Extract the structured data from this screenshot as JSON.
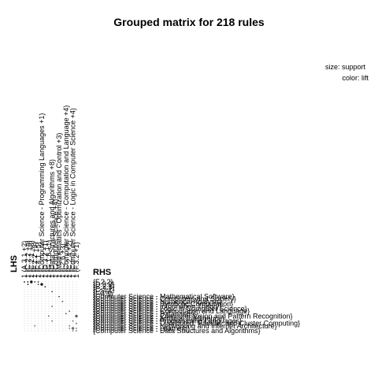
{
  "chart_data": {
    "type": "scatter",
    "title": "Grouped matrix for 218 rules",
    "xlabel": "LHS",
    "ylabel": "RHS",
    "legend": {
      "size": "size: support",
      "color": "color: lift"
    },
    "lhs_labels": [
      "1 (A.3.1 +2)",
      "1 (C.2.2 +4)",
      "1 (C.2.1 +8)",
      "1 (F.2.2 +5)",
      "1 (F.4.1 +5)",
      "1 (Computer Science - Programming Languages +1)",
      "1 (D.3.2 +1)",
      "1 (G.1.6 +1)",
      "1 (Data Structures and Algorithms +8)",
      "1 (Computer Science +4)",
      "1 (Mathematics - Optimization and Control +3)",
      "1 (I.2.6 +3)",
      "1 (Computer Science - Computation and Language +4)",
      "1 (C.2.4 +2)",
      "1 (Computer Science - Logic in Computer Science +4)",
      "1 (F.3.2 +1)"
    ],
    "rhs_labels": [
      "{F.2.2}",
      "{D.3.2}",
      "{C.2.1}",
      "{C.2.2}",
      "{I.2.6}",
      "{F.4.1}",
      "{Computer Science - Mathematical Software}",
      "{Computer Science - Computers and Society}",
      "{Computer Science - Numerical Analysis}",
      "{Computer Science - Symbolic Computation}",
      "{Computer Science - Information Theory}",
      "{Computer Science - Logic in Computer Science}",
      "{Computer Science - Computation and Language}",
      "{Computer Science - Databases}",
      "{Computer Science - Computer Vision and Pattern Recognition}",
      "{Computer Science - Artificial Intelligence}",
      "{Computer Science - Programming Languages}",
      "{Computer Science - Distributed, Parallel, and Cluster Computing}",
      "{Computer Science - Networking and Internet Architecture}",
      "{Computer Science - Learning}",
      "{Computer Science - Data Structures and Algorithms}"
    ],
    "points": [
      {
        "lhs": 0,
        "rhs": 0,
        "support": 0.02,
        "lift": 40
      },
      {
        "lhs": 1,
        "rhs": 0,
        "support": 0.02,
        "lift": 38
      },
      {
        "lhs": 2,
        "rhs": 0,
        "support": 0.03,
        "lift": 35
      },
      {
        "lhs": 3,
        "rhs": 0,
        "support": 0.02,
        "lift": 30
      },
      {
        "lhs": 4,
        "rhs": 0,
        "support": 0.02,
        "lift": 28
      },
      {
        "lhs": 1,
        "rhs": 1,
        "support": 0.02,
        "lift": 36
      },
      {
        "lhs": 4,
        "rhs": 1,
        "support": 0.02,
        "lift": 26
      },
      {
        "lhs": 5,
        "rhs": 1,
        "support": 0.03,
        "lift": 33
      },
      {
        "lhs": 6,
        "rhs": 2,
        "support": 0.02,
        "lift": 30
      },
      {
        "lhs": 8,
        "rhs": 4,
        "support": 0.02,
        "lift": 24
      },
      {
        "lhs": 10,
        "rhs": 6,
        "support": 0.02,
        "lift": 20
      },
      {
        "lhs": 11,
        "rhs": 8,
        "support": 0.02,
        "lift": 18
      },
      {
        "lhs": 8,
        "rhs": 10,
        "support": 0.02,
        "lift": 16
      },
      {
        "lhs": 13,
        "rhs": 12,
        "support": 0.02,
        "lift": 14
      },
      {
        "lhs": 12,
        "rhs": 13,
        "support": 0.02,
        "lift": 14
      },
      {
        "lhs": 7,
        "rhs": 14,
        "support": 0.02,
        "lift": 12
      },
      {
        "lhs": 15,
        "rhs": 14,
        "support": 0.03,
        "lift": 12
      },
      {
        "lhs": 14,
        "rhs": 16,
        "support": 0.02,
        "lift": 10
      },
      {
        "lhs": 15,
        "rhs": 17,
        "support": 0.02,
        "lift": 10
      },
      {
        "lhs": 3,
        "rhs": 18,
        "support": 0.02,
        "lift": 8
      },
      {
        "lhs": 13,
        "rhs": 18,
        "support": 0.02,
        "lift": 8
      },
      {
        "lhs": 13,
        "rhs": 19,
        "support": 0.02,
        "lift": 6
      },
      {
        "lhs": 14,
        "rhs": 19,
        "support": 0.03,
        "lift": 6
      },
      {
        "lhs": 15,
        "rhs": 19,
        "support": 0.02,
        "lift": 6
      },
      {
        "lhs": 15,
        "rhs": 20,
        "support": 0.02,
        "lift": 5
      },
      {
        "lhs": 14,
        "rhs": 20,
        "support": 0.02,
        "lift": 5
      },
      {
        "lhs": 8,
        "rhs": 16,
        "support": 0.02,
        "lift": 9
      }
    ],
    "grid": false
  }
}
